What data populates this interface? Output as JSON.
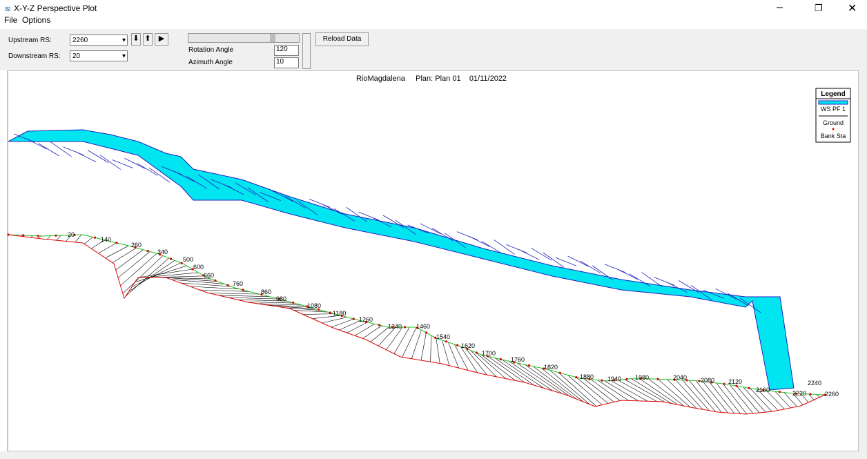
{
  "window": {
    "title": "X-Y-Z Perspective Plot",
    "menu": [
      "File",
      "Options"
    ]
  },
  "toolbar": {
    "upstream_label": "Upstream RS:",
    "upstream_value": "2260",
    "downstream_label": "Downstream RS:",
    "downstream_value": "20",
    "rotation_label": "Rotation Angle",
    "rotation_value": "120",
    "azimuth_label": "Azimuth Angle",
    "azimuth_value": "10",
    "reload_button": "Reload Data"
  },
  "plot": {
    "title": "RioMagdalena     Plan: Plan 01    01/11/2022",
    "legend": {
      "title": "Legend",
      "items": [
        "WS PF 1",
        "Ground",
        "Bank Sta"
      ]
    },
    "station_labels": [
      "20",
      "140",
      "260",
      "340",
      "500",
      "600",
      "660",
      "760",
      "860",
      "980",
      "1080",
      "1180",
      "1260",
      "1340",
      "1460",
      "1540",
      "1620",
      "1700",
      "1760",
      "1820",
      "1880",
      "1940",
      "1980",
      "2040",
      "2080",
      "2120",
      "2160",
      "2220",
      "2240",
      "2260"
    ]
  }
}
